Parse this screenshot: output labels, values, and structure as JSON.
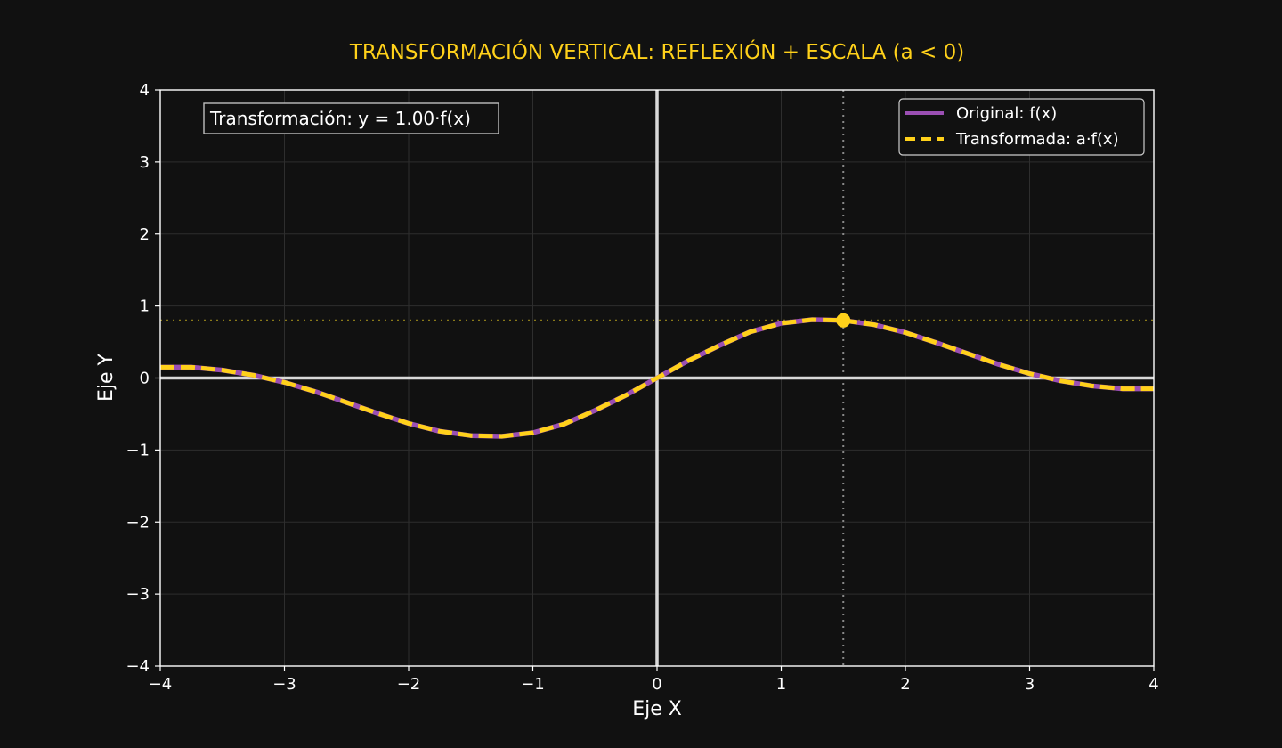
{
  "chart_data": {
    "type": "line",
    "title": "TRANSFORMACIÓN VERTICAL: REFLEXIÓN + ESCALA (a < 0)",
    "xlabel": "Eje X",
    "ylabel": "Eje Y",
    "xlim": [
      -4,
      4
    ],
    "ylim": [
      -4,
      4
    ],
    "xticks": [
      -4,
      -3,
      -2,
      -1,
      0,
      1,
      2,
      3,
      4
    ],
    "yticks": [
      -4,
      -3,
      -2,
      -1,
      0,
      1,
      2,
      3,
      4
    ],
    "xtick_labels": [
      "−4",
      "−3",
      "−2",
      "−1",
      "0",
      "1",
      "2",
      "3",
      "4"
    ],
    "ytick_labels": [
      "−4",
      "−3",
      "−2",
      "−1",
      "0",
      "1",
      "2",
      "3",
      "4"
    ],
    "grid": true,
    "legend_position": "top-right",
    "annotation": "Transformación: y = 1.00·f(x)",
    "highlight_point": {
      "x": 1.5,
      "y": 0.8
    },
    "series": [
      {
        "name": "Original: f(x)",
        "color": "#9b4fb3",
        "style": "solid",
        "x": [
          -4,
          -3.75,
          -3.5,
          -3.25,
          -3,
          -2.75,
          -2.5,
          -2.25,
          -2,
          -1.75,
          -1.5,
          -1.25,
          -1,
          -0.75,
          -0.5,
          -0.25,
          0,
          0.25,
          0.5,
          0.75,
          1,
          1.25,
          1.5,
          1.75,
          2,
          2.25,
          2.5,
          2.75,
          3,
          3.25,
          3.5,
          3.75,
          4
        ],
        "y": [
          0.15,
          0.15,
          0.11,
          0.04,
          -0.06,
          -0.19,
          -0.34,
          -0.49,
          -0.63,
          -0.74,
          -0.8,
          -0.81,
          -0.76,
          -0.64,
          -0.45,
          -0.24,
          0,
          0.24,
          0.45,
          0.64,
          0.76,
          0.81,
          0.8,
          0.74,
          0.63,
          0.49,
          0.34,
          0.19,
          0.06,
          -0.04,
          -0.11,
          -0.15,
          -0.15
        ]
      },
      {
        "name": "Transformada: a·f(x)",
        "color": "#ffd11a",
        "style": "dashed",
        "x": [
          -4,
          -3.75,
          -3.5,
          -3.25,
          -3,
          -2.75,
          -2.5,
          -2.25,
          -2,
          -1.75,
          -1.5,
          -1.25,
          -1,
          -0.75,
          -0.5,
          -0.25,
          0,
          0.25,
          0.5,
          0.75,
          1,
          1.25,
          1.5,
          1.75,
          2,
          2.25,
          2.5,
          2.75,
          3,
          3.25,
          3.5,
          3.75,
          4
        ],
        "y": [
          0.15,
          0.15,
          0.11,
          0.04,
          -0.06,
          -0.19,
          -0.34,
          -0.49,
          -0.63,
          -0.74,
          -0.8,
          -0.81,
          -0.76,
          -0.64,
          -0.45,
          -0.24,
          0,
          0.24,
          0.45,
          0.64,
          0.76,
          0.81,
          0.8,
          0.74,
          0.63,
          0.49,
          0.34,
          0.19,
          0.06,
          -0.04,
          -0.11,
          -0.15,
          -0.15
        ]
      }
    ],
    "colors": {
      "background": "#111111",
      "title": "#ffd11a",
      "axes_frame": "#ffffff",
      "zero_lines": "#d9d9d9",
      "grid": "#2e2e2e",
      "guide_vertical": "#888888",
      "guide_horizontal": "#8a7a1a"
    }
  }
}
